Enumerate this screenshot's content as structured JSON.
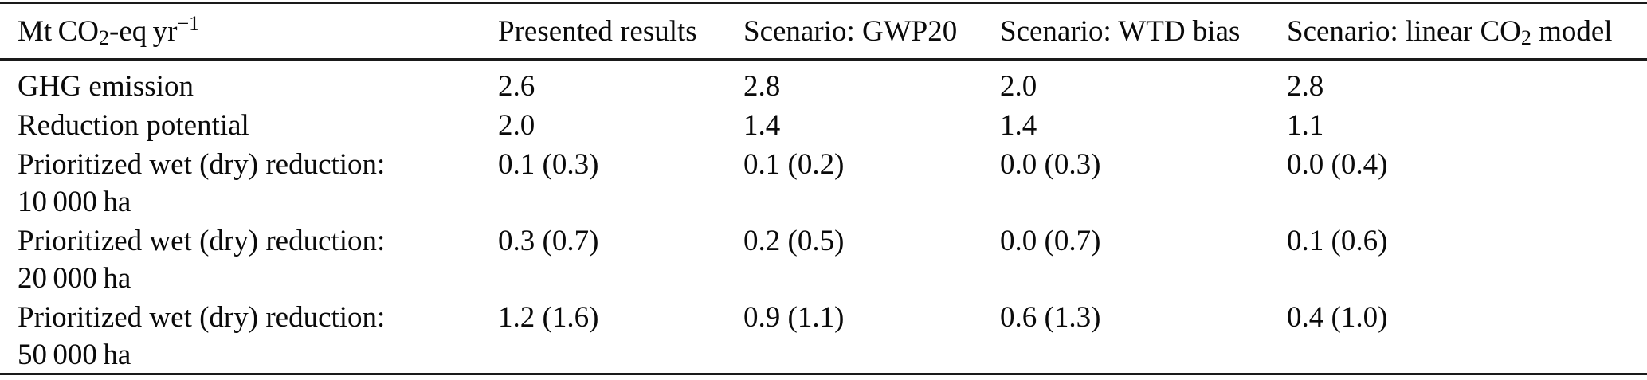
{
  "colors": {
    "text": "#0a0a0a",
    "rule": "#1a1a1a",
    "background": "#ffffff"
  },
  "table": {
    "unit_header": {
      "prefix": "Mt CO",
      "sub": "2",
      "mid": "-eq yr",
      "sup": "−1"
    },
    "columns": [
      {
        "text": "Presented results"
      },
      {
        "text": "Scenario: GWP20"
      },
      {
        "text": "Scenario: WTD bias"
      },
      {
        "prefix": "Scenario: linear CO",
        "sub": "2",
        "suffix": " model"
      }
    ],
    "rows": [
      {
        "label": "GHG emission",
        "values": [
          "2.6",
          "2.8",
          "2.0",
          "2.8"
        ]
      },
      {
        "label": "Reduction potential",
        "values": [
          "2.0",
          "1.4",
          "1.4",
          "1.1"
        ]
      },
      {
        "label": "Prioritized wet (dry) reduction:",
        "sublabel": "10 000 ha",
        "values": [
          "0.1 (0.3)",
          "0.1 (0.2)",
          "0.0 (0.3)",
          "0.0 (0.4)"
        ]
      },
      {
        "label": "Prioritized wet (dry) reduction:",
        "sublabel": "20 000 ha",
        "values": [
          "0.3 (0.7)",
          "0.2 (0.5)",
          "0.0 (0.7)",
          "0.1 (0.6)"
        ]
      },
      {
        "label": "Prioritized wet (dry) reduction:",
        "sublabel": "50 000 ha",
        "values": [
          "1.2 (1.6)",
          "0.9 (1.1)",
          "0.6 (1.3)",
          "0.4 (1.0)"
        ]
      }
    ]
  }
}
